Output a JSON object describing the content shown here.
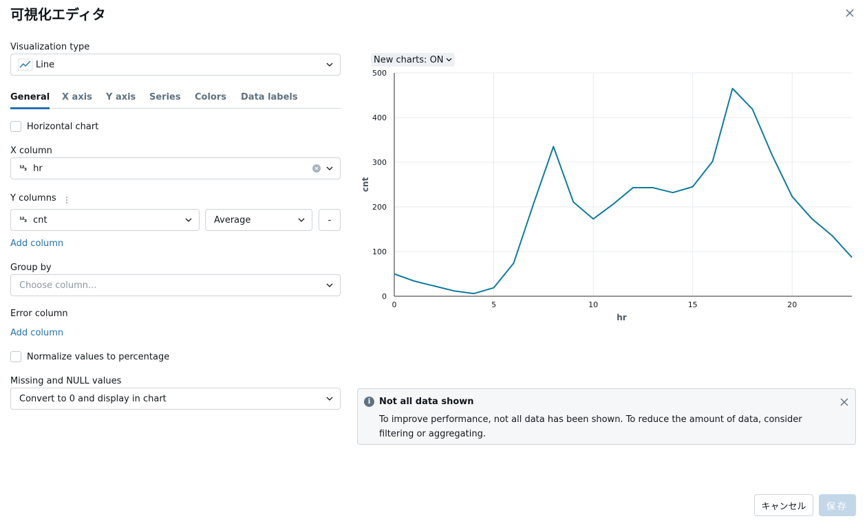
{
  "dialog": {
    "title": "可視化エディタ"
  },
  "viz_type": {
    "label": "Visualization type",
    "value": "Line",
    "icon": "line-chart-icon"
  },
  "tabs": [
    {
      "label": "General",
      "active": true
    },
    {
      "label": "X axis",
      "active": false
    },
    {
      "label": "Y axis",
      "active": false
    },
    {
      "label": "Series",
      "active": false
    },
    {
      "label": "Colors",
      "active": false
    },
    {
      "label": "Data labels",
      "active": false
    }
  ],
  "general": {
    "horizontal_chart": {
      "label": "Horizontal chart",
      "checked": false
    },
    "x_column": {
      "label": "X column",
      "type_icon": "¹²₃",
      "value": "hr"
    },
    "y_columns": {
      "label": "Y columns",
      "column": "cnt",
      "type_icon": "¹²₃",
      "aggregation": "Average",
      "remove_label": "-"
    },
    "add_y_column": "Add column",
    "group_by": {
      "label": "Group by",
      "placeholder": "Choose column..."
    },
    "error_column": {
      "label": "Error column",
      "add": "Add column"
    },
    "normalize": {
      "label": "Normalize values to percentage",
      "checked": false
    },
    "missing": {
      "label": "Missing and NULL values",
      "value": "Convert to 0 and display in chart"
    }
  },
  "new_charts_toggle": "New charts: ON",
  "chart_data": {
    "type": "line",
    "xlabel": "hr",
    "ylabel": "cnt",
    "xlim": [
      0,
      23
    ],
    "ylim": [
      0,
      500
    ],
    "xticks": [
      0,
      5,
      10,
      15,
      20
    ],
    "yticks": [
      0,
      100,
      200,
      300,
      400,
      500
    ],
    "grid": true,
    "color": "#0e7a9a",
    "x": [
      0,
      1,
      2,
      3,
      4,
      5,
      6,
      7,
      8,
      9,
      10,
      11,
      12,
      13,
      14,
      15,
      16,
      17,
      18,
      19,
      20,
      21,
      22,
      23
    ],
    "y": [
      50,
      34,
      23,
      12,
      6,
      19,
      74,
      207,
      335,
      211,
      173,
      206,
      243,
      243,
      232,
      245,
      302,
      465,
      419,
      315,
      223,
      173,
      136,
      87
    ]
  },
  "alert": {
    "title": "Not all data shown",
    "message": "To improve performance, not all data has been shown. To reduce the amount of data, consider filtering or aggregating."
  },
  "footer": {
    "cancel": "キャンセル",
    "save": "保存"
  },
  "colors": {
    "accent": "#2272b4",
    "series": "#0e7a9a"
  }
}
